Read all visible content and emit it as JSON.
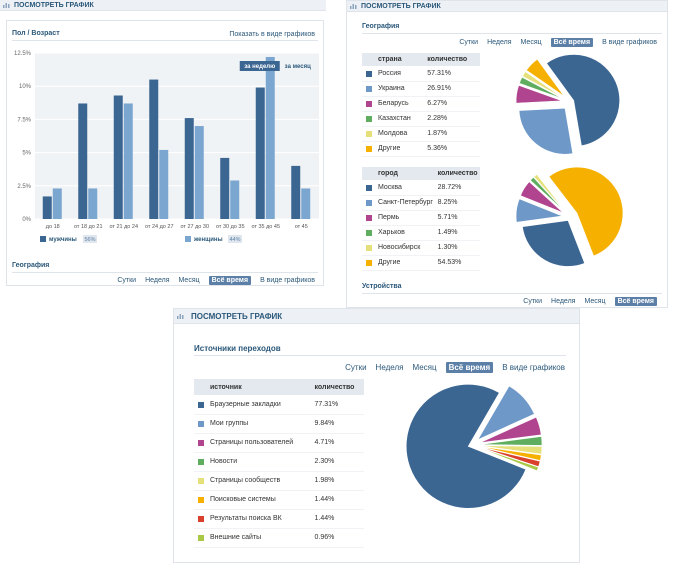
{
  "panel_a": {
    "header": "ПОСМОТРЕТЬ ГРАФИК",
    "section_title": "Пол / Возраст",
    "graph_link": "Показать в виде графиков",
    "chart_data": {
      "type": "bar",
      "title": "Пол / Возраст",
      "categories": [
        "до 18",
        "от 18 до 21",
        "от 21 до 24",
        "от 24 до 27",
        "от 27 до 30",
        "от 30 до 35",
        "от 35 до 45",
        "от 45"
      ],
      "series": [
        {
          "name": "мужчины",
          "values": [
            1.7,
            8.7,
            9.3,
            10.5,
            7.6,
            4.6,
            9.9,
            4.0
          ]
        },
        {
          "name": "женщины",
          "values": [
            2.3,
            2.3,
            8.7,
            5.2,
            7.0,
            2.9,
            12.2,
            2.3
          ]
        }
      ],
      "yticks": [
        "0%",
        "2.5%",
        "5%",
        "7.5%",
        "10%",
        "12.5%"
      ],
      "ylim": [
        0,
        12.5
      ],
      "colors": [
        "#3b6692",
        "#7ba6d0"
      ],
      "legend_pcts": [
        "56%",
        "44%"
      ],
      "callouts": [
        "за неделю",
        "за месяц"
      ],
      "grid": true,
      "legend": "bottom"
    },
    "geography_label": "География",
    "tabs": [
      "Сутки",
      "Неделя",
      "Месяц",
      "Всё время",
      "В виде графиков"
    ]
  },
  "panel_b": {
    "header": "ПОСМОТРЕТЬ ГРАФИК",
    "section_title": "География",
    "tabs": [
      "Сутки",
      "Неделя",
      "Месяц",
      "Всё время",
      "В виде графиков"
    ],
    "country_table": {
      "headers": [
        "страна",
        "количество"
      ],
      "rows": [
        {
          "name": "Россия",
          "value": "57.31%",
          "color": "#3b6692"
        },
        {
          "name": "Украина",
          "value": "26.91%",
          "color": "#6e98c8"
        },
        {
          "name": "Беларусь",
          "value": "6.27%",
          "color": "#b0448e"
        },
        {
          "name": "Казахстан",
          "value": "2.28%",
          "color": "#5fae5f"
        },
        {
          "name": "Молдова",
          "value": "1.87%",
          "color": "#e6e07a"
        },
        {
          "name": "Другие",
          "value": "5.36%",
          "color": "#f5b000"
        }
      ]
    },
    "city_table": {
      "headers": [
        "город",
        "количество"
      ],
      "rows": [
        {
          "name": "Москва",
          "value": "28.72%",
          "color": "#3b6692"
        },
        {
          "name": "Санкт-Петербург",
          "value": "8.25%",
          "color": "#6e98c8"
        },
        {
          "name": "Пермь",
          "value": "5.71%",
          "color": "#b0448e"
        },
        {
          "name": "Харьков",
          "value": "1.49%",
          "color": "#5fae5f"
        },
        {
          "name": "Новосибирск",
          "value": "1.30%",
          "color": "#e6e07a"
        },
        {
          "name": "Другие",
          "value": "54.53%",
          "color": "#f5b000"
        }
      ]
    },
    "devices_label": "Устройства",
    "tabs2": [
      "Сутки",
      "Неделя",
      "Месяц",
      "Всё время"
    ]
  },
  "panel_c": {
    "header": "ПОСМОТРЕТЬ ГРАФИК",
    "section_title": "Источники переходов",
    "tabs": [
      "Сутки",
      "Неделя",
      "Месяц",
      "Всё время",
      "В виде графиков"
    ],
    "source_table": {
      "headers": [
        "источник",
        "количество"
      ],
      "rows": [
        {
          "name": "Браузерные закладки",
          "value": "77.31%",
          "color": "#3b6692"
        },
        {
          "name": "Мои группы",
          "value": "9.84%",
          "color": "#6e98c8"
        },
        {
          "name": "Страницы пользователей",
          "value": "4.71%",
          "color": "#b0448e"
        },
        {
          "name": "Новости",
          "value": "2.30%",
          "color": "#5fae5f"
        },
        {
          "name": "Страницы сообществ",
          "value": "1.98%",
          "color": "#e6e07a"
        },
        {
          "name": "Поисковые системы",
          "value": "1.44%",
          "color": "#f5b000"
        },
        {
          "name": "Результаты поиска ВК",
          "value": "1.44%",
          "color": "#d9412c"
        },
        {
          "name": "Внешние сайты",
          "value": "0.96%",
          "color": "#a8c846"
        }
      ]
    }
  }
}
